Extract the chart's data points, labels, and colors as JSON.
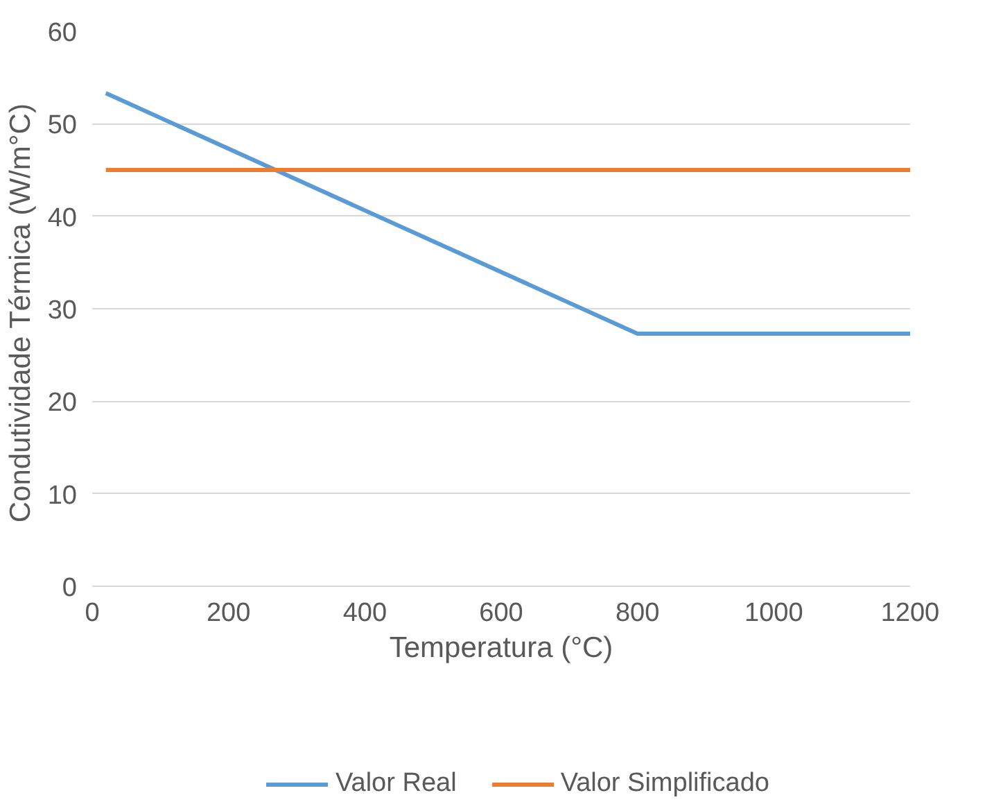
{
  "chart_data": {
    "type": "line",
    "xlabel": "Temperatura (°C)",
    "ylabel": "Condutividade Térmica  (W/m°C)",
    "xlim": [
      0,
      1200
    ],
    "xticks": [
      0,
      200,
      400,
      600,
      800,
      1000,
      1200
    ],
    "ylim": [
      0,
      60
    ],
    "yticks": [
      0,
      10,
      20,
      30,
      40,
      50,
      60
    ],
    "grid": "y",
    "legend": "bottom",
    "series": [
      {
        "name": "Valor Real",
        "color": "#5b9bd5",
        "x": [
          20,
          800,
          1200
        ],
        "values": [
          53.3,
          27.3,
          27.3
        ]
      },
      {
        "name": "Valor Simplificado",
        "color": "#ed7d31",
        "x": [
          20,
          1200
        ],
        "values": [
          45,
          45
        ]
      }
    ]
  }
}
